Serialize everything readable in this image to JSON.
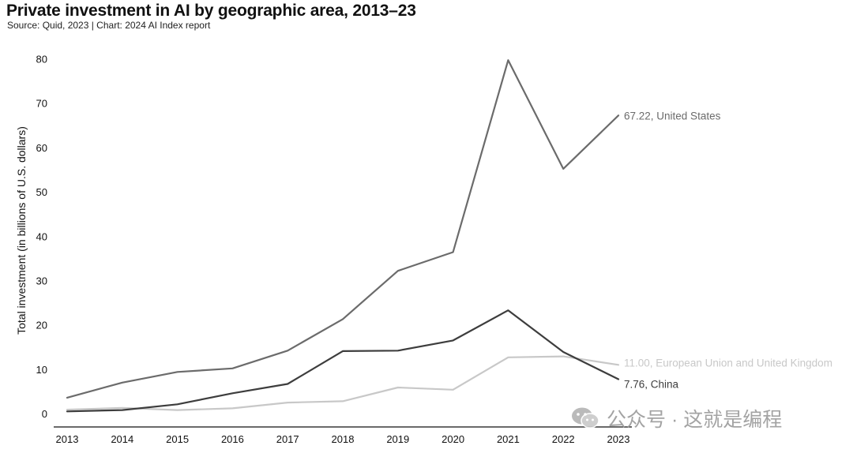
{
  "header": {
    "title": "Private investment in AI by geographic area, 2013–23",
    "subtitle": "Source: Quid, 2023 | Chart: 2024 AI Index report"
  },
  "watermark": {
    "text": "公众号 · 这就是编程",
    "icon": "wechat-icon"
  },
  "chart_data": {
    "type": "line",
    "title": "Private investment in AI by geographic area, 2013–23",
    "xlabel": "",
    "ylabel": "Total investment (in billions of U.S. dollars)",
    "x": [
      "2013",
      "2014",
      "2015",
      "2016",
      "2017",
      "2018",
      "2019",
      "2020",
      "2021",
      "2022",
      "2023"
    ],
    "ylim": [
      -3,
      84
    ],
    "yticks": [
      0,
      10,
      20,
      30,
      40,
      50,
      60,
      70,
      80
    ],
    "grid": false,
    "legend": "none",
    "series": [
      {
        "name": "United States",
        "label": "67.22, United States",
        "color": "#6b6b6b",
        "values": [
          3.6,
          7.0,
          9.4,
          10.2,
          14.2,
          21.3,
          32.2,
          36.4,
          79.7,
          55.2,
          67.22
        ]
      },
      {
        "name": "China",
        "label": "7.76, China",
        "color": "#3d3d3d",
        "values": [
          0.5,
          0.8,
          2.1,
          4.6,
          6.7,
          14.1,
          14.2,
          16.5,
          23.3,
          13.9,
          7.76
        ]
      },
      {
        "name": "European Union and United Kingdom",
        "label": "11.00, European Union and United Kingdom",
        "color": "#c8c8c8",
        "values": [
          0.9,
          1.3,
          0.8,
          1.2,
          2.5,
          2.8,
          5.9,
          5.4,
          12.7,
          12.9,
          11.0
        ]
      }
    ]
  }
}
